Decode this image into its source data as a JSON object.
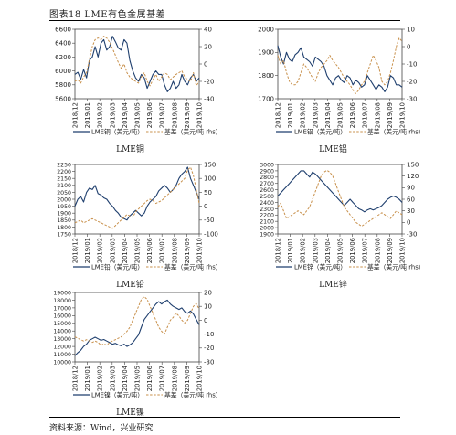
{
  "figure": {
    "title": "图表18  LME有色金属基差",
    "source": "资料来源：Wind，兴业研究"
  },
  "colors": {
    "price": "#1f3f6e",
    "basis": "#c8904b",
    "axis": "#444444"
  },
  "chart_data": [
    {
      "type": "line",
      "title": "LME铜",
      "x_ticks": [
        "2018/12",
        "2019/01",
        "2019/02",
        "2019/03",
        "2019/04",
        "2019/05",
        "2019/06",
        "2019/07",
        "2019/08",
        "2019/09",
        "2019/10"
      ],
      "y_left": {
        "range": [
          5600,
          6600
        ],
        "ticks": [
          5600,
          5800,
          6000,
          6200,
          6400,
          6600
        ]
      },
      "y_right": {
        "range": [
          -40,
          40
        ],
        "ticks": [
          -40,
          -20,
          0,
          20,
          40
        ]
      },
      "legend": [
        "LME铜（美元/吨）",
        "基差（美元/吨 rhs）"
      ],
      "series": [
        {
          "name": "LME铜（美元/吨）",
          "axis": "left",
          "values": [
            5950,
            5980,
            5880,
            6020,
            5900,
            6150,
            6200,
            6350,
            6200,
            6400,
            6450,
            6300,
            6350,
            6500,
            6420,
            6330,
            6300,
            6450,
            6400,
            6150,
            6000,
            5900,
            5850,
            5950,
            5900,
            5750,
            5850,
            5950,
            6000,
            5950,
            5950,
            5800,
            5700,
            5750,
            5850,
            5750,
            5800,
            5950,
            5850,
            5800,
            5900,
            5950,
            5850,
            5900
          ]
        },
        {
          "name": "基差（美元/吨 rhs）",
          "axis": "right",
          "values": [
            -20,
            -18,
            -22,
            -15,
            -10,
            5,
            20,
            28,
            30,
            28,
            32,
            30,
            25,
            18,
            10,
            2,
            -5,
            0,
            -10,
            -15,
            -18,
            -20,
            -22,
            -15,
            -10,
            -20,
            -25,
            -18,
            -12,
            -20,
            -15,
            -10,
            -12,
            -18,
            -15,
            -12,
            -10,
            -8,
            -15,
            -18,
            -20,
            -10,
            -25,
            -20
          ]
        }
      ]
    },
    {
      "type": "line",
      "title": "LME铝",
      "x_ticks": [
        "2018/12",
        "2019/01",
        "2019/02",
        "2019/03",
        "2019/04",
        "2019/05",
        "2019/06",
        "2019/07",
        "2019/08",
        "2019/09",
        "2019/10"
      ],
      "y_left": {
        "range": [
          1700,
          2000
        ],
        "ticks": [
          1700,
          1800,
          1900,
          2000
        ]
      },
      "y_right": {
        "range": [
          -30,
          10
        ],
        "ticks": [
          -30,
          -20,
          -10,
          0,
          10
        ]
      },
      "legend": [
        "LME铝（美元/吨）",
        "基差（美元/吨 rhs）"
      ],
      "series": [
        {
          "name": "LME铝（美元/吨）",
          "axis": "left",
          "values": [
            1930,
            1880,
            1850,
            1900,
            1870,
            1860,
            1890,
            1900,
            1920,
            1880,
            1870,
            1860,
            1840,
            1880,
            1870,
            1860,
            1840,
            1800,
            1780,
            1760,
            1790,
            1800,
            1780,
            1770,
            1800,
            1790,
            1760,
            1780,
            1770,
            1750,
            1760,
            1800,
            1780,
            1760,
            1740,
            1760,
            1750,
            1730,
            1750,
            1800,
            1790,
            1760,
            1760,
            1750
          ]
        },
        {
          "name": "基差（美元/吨 rhs）",
          "axis": "right",
          "values": [
            -5,
            -10,
            -8,
            -15,
            -20,
            -22,
            -22,
            -20,
            -15,
            -10,
            -12,
            -15,
            -18,
            -20,
            -15,
            -12,
            -10,
            -8,
            -5,
            -8,
            -10,
            -12,
            -15,
            -18,
            -20,
            -22,
            -25,
            -27,
            -25,
            -22,
            -20,
            -15,
            -10,
            -5,
            -8,
            -12,
            -20,
            -22,
            -20,
            -15,
            -8,
            0,
            5,
            3
          ]
        }
      ]
    },
    {
      "type": "line",
      "title": "LME铅",
      "x_ticks": [
        "2018/12",
        "2019/01",
        "2019/02",
        "2019/03",
        "2019/04",
        "2019/05",
        "2019/06",
        "2019/07",
        "2019/08",
        "2019/09",
        "2019/10"
      ],
      "y_left": {
        "range": [
          1750,
          2250
        ],
        "ticks": [
          1750,
          1800,
          1850,
          1900,
          1950,
          2000,
          2050,
          2100,
          2150,
          2200,
          2250
        ]
      },
      "y_right": {
        "range": [
          -100,
          150
        ],
        "ticks": [
          -100,
          -50,
          0,
          50,
          100,
          150
        ]
      },
      "legend": [
        "LME铅（美元/吨）",
        "基差（美元/吨 rhs）"
      ],
      "series": [
        {
          "name": "LME铅（美元/吨）",
          "axis": "left",
          "values": [
            1950,
            2000,
            2020,
            1980,
            2050,
            2080,
            2070,
            2100,
            2040,
            2030,
            2010,
            2000,
            1970,
            1950,
            1920,
            1900,
            1870,
            1860,
            1850,
            1880,
            1900,
            1920,
            1900,
            1880,
            1900,
            1950,
            1980,
            2000,
            2020,
            2060,
            2080,
            2100,
            2080,
            2050,
            2070,
            2100,
            2150,
            2180,
            2200,
            2230,
            2150,
            2100,
            2050,
            2000
          ]
        },
        {
          "name": "基差（美元/吨 rhs）",
          "axis": "right",
          "values": [
            -60,
            -55,
            -50,
            -60,
            -55,
            -50,
            -45,
            -50,
            -55,
            -60,
            -65,
            -70,
            -75,
            -80,
            -70,
            -60,
            -50,
            -40,
            -30,
            -35,
            -40,
            -20,
            -10,
            0,
            10,
            20,
            25,
            20,
            10,
            15,
            20,
            30,
            40,
            50,
            60,
            70,
            80,
            90,
            100,
            130,
            140,
            110,
            60,
            10
          ]
        }
      ]
    },
    {
      "type": "line",
      "title": "LME锌",
      "x_ticks": [
        "2018/12",
        "2019/01",
        "2019/02",
        "2019/03",
        "2019/04",
        "2019/05",
        "2019/06",
        "2019/07",
        "2019/08",
        "2019/09",
        "2019/10"
      ],
      "y_left": {
        "range": [
          1900,
          3000
        ],
        "ticks": [
          1900,
          2000,
          2100,
          2200,
          2300,
          2400,
          2500,
          2600,
          2700,
          2800,
          2900,
          3000
        ]
      },
      "y_right": {
        "range": [
          -30,
          150
        ],
        "ticks": [
          -30,
          0,
          30,
          60,
          90,
          120,
          150
        ]
      },
      "legend": [
        "LME锌（美元/吨）",
        "基差（美元/吨 rhs）"
      ],
      "series": [
        {
          "name": "LME锌（美元/吨）",
          "axis": "left",
          "values": [
            2500,
            2550,
            2600,
            2650,
            2700,
            2750,
            2800,
            2850,
            2900,
            2900,
            2850,
            2800,
            2880,
            2850,
            2800,
            2750,
            2700,
            2650,
            2600,
            2550,
            2500,
            2450,
            2400,
            2350,
            2400,
            2450,
            2400,
            2350,
            2300,
            2280,
            2250,
            2280,
            2300,
            2280,
            2300,
            2320,
            2350,
            2400,
            2450,
            2480,
            2500,
            2480,
            2450,
            2400
          ]
        },
        {
          "name": "基差（美元/吨 rhs）",
          "axis": "right",
          "values": [
            40,
            50,
            30,
            10,
            15,
            20,
            25,
            30,
            25,
            20,
            30,
            40,
            60,
            80,
            100,
            120,
            130,
            135,
            130,
            120,
            100,
            80,
            60,
            40,
            30,
            20,
            10,
            0,
            -5,
            -10,
            -5,
            0,
            5,
            10,
            15,
            20,
            25,
            20,
            15,
            10,
            20,
            30,
            25,
            20
          ]
        }
      ]
    },
    {
      "type": "line",
      "title": "LME镍",
      "x_ticks": [
        "2018/12",
        "2019/01",
        "2019/02",
        "2019/03",
        "2019/04",
        "2019/05",
        "2019/06",
        "2019/07",
        "2019/08",
        "2019/09",
        "2019/10"
      ],
      "y_left": {
        "range": [
          10000,
          19000
        ],
        "ticks": [
          10000,
          11000,
          12000,
          13000,
          14000,
          15000,
          16000,
          17000,
          18000,
          19000
        ]
      },
      "y_right": {
        "range": [
          -30,
          20
        ],
        "ticks": [
          -30,
          -20,
          -10,
          0,
          10,
          20
        ]
      },
      "legend": [
        "LME镍（美元/吨）",
        "基差（美元/吨 rhs）"
      ],
      "series": [
        {
          "name": "LME镍（美元/吨）",
          "axis": "left",
          "values": [
            10800,
            11200,
            11500,
            12000,
            12300,
            12800,
            13000,
            13200,
            13000,
            12800,
            12900,
            12700,
            12500,
            12300,
            12400,
            12200,
            12100,
            12300,
            12000,
            12200,
            12500,
            13000,
            13500,
            14500,
            15500,
            16000,
            16500,
            17000,
            17500,
            17800,
            17500,
            17800,
            18000,
            17500,
            17200,
            17000,
            16800,
            17000,
            16500,
            16300,
            16600,
            16200,
            15500,
            14800
          ]
        },
        {
          "name": "基差（美元/吨 rhs）",
          "axis": "right",
          "values": [
            -12,
            -13,
            -14,
            -15,
            -14,
            -15,
            -16,
            -15,
            -16,
            -18,
            -17,
            -18,
            -16,
            -15,
            -14,
            -13,
            -12,
            -10,
            -8,
            -5,
            0,
            5,
            10,
            15,
            17,
            15,
            10,
            5,
            0,
            -5,
            -8,
            -10,
            -5,
            0,
            2,
            5,
            3,
            0,
            -2,
            0,
            5,
            10,
            12,
            8
          ]
        }
      ]
    }
  ]
}
